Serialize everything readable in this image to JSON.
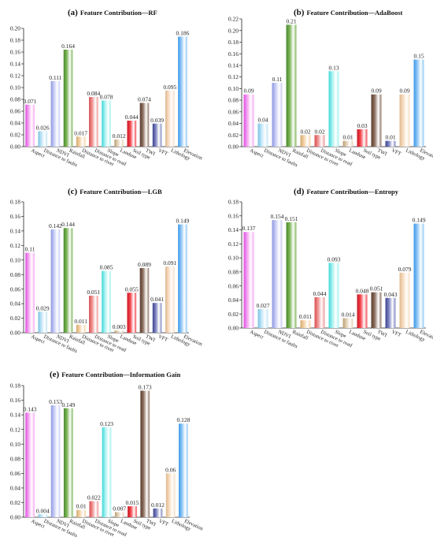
{
  "figure": {
    "panels": [
      "(a) Feature Contribution—RF",
      "(b) Feature Contribution—AdaBoost",
      "(c) Feature Contribution—LGB",
      "(d) Feature Contribution—Entropy",
      "(e) Feature Contribution—Information Gain"
    ]
  },
  "chart_data": [
    {
      "type": "bar",
      "title_letter": "(a)",
      "title": "Feature Contribution—RF",
      "categories": [
        "Aspect",
        "Distance to faults",
        "NDVI",
        "Rainfall",
        "Distance to river",
        "Distance to road",
        "Slope",
        "Landuse",
        "Soil type",
        "TWI",
        "VFT",
        "Lithology",
        "Elevation"
      ],
      "values": [
        0.071,
        0.026,
        0.111,
        0.164,
        0.017,
        0.084,
        0.078,
        0.012,
        0.044,
        0.074,
        0.039,
        0.095,
        0.186
      ],
      "labels": [
        "0.071",
        "0.026",
        "0.111",
        "0.164",
        "0.017",
        "0.084",
        "0.078",
        "0.012",
        "0.044",
        "0.074",
        "0.039",
        "0.095",
        "0.186"
      ],
      "ylim": [
        0,
        0.2
      ],
      "yticks": [
        "0.00",
        "0.02",
        "0.04",
        "0.06",
        "0.08",
        "0.10",
        "0.12",
        "0.14",
        "0.16",
        "0.18",
        "0.20"
      ],
      "xlabel": "",
      "ylabel": ""
    },
    {
      "type": "bar",
      "title_letter": "(b)",
      "title": "Feature Contribution—AdaBoost",
      "categories": [
        "Aspect",
        "Distance to faults",
        "NDVI",
        "Rainfall",
        "Distance to river",
        "Distance to road",
        "Slope",
        "Landuse",
        "Soil type",
        "TWI",
        "VFT",
        "Lithology",
        "Elevation"
      ],
      "values": [
        0.09,
        0.04,
        0.11,
        0.21,
        0.02,
        0.02,
        0.13,
        0.01,
        0.03,
        0.09,
        0.01,
        0.09,
        0.15
      ],
      "labels": [
        "0.09",
        "0.04",
        "0.11",
        "0.21",
        "0.02",
        "0.02",
        "0.13",
        "0.01",
        "0.03",
        "0.09",
        "0.01",
        "0.09",
        "0.15"
      ],
      "ylim": [
        0,
        0.22
      ],
      "yticks": [
        "0.00",
        "0.02",
        "0.04",
        "0.06",
        "0.08",
        "0.10",
        "0.12",
        "0.14",
        "0.16",
        "0.18",
        "0.20",
        "0.22"
      ],
      "xlabel": "",
      "ylabel": ""
    },
    {
      "type": "bar",
      "title_letter": "(c)",
      "title": "Feature Contribution—LGB",
      "categories": [
        "Aspect",
        "Distance to faults",
        "NDVI",
        "Rainfall",
        "Distance to river",
        "Distance to road",
        "Slope",
        "Landuse",
        "Soil type",
        "TWI",
        "VFT",
        "Lithology",
        "Elevation"
      ],
      "values": [
        0.11,
        0.029,
        0.142,
        0.144,
        0.011,
        0.051,
        0.085,
        0.003,
        0.055,
        0.089,
        0.041,
        0.091,
        0.149
      ],
      "labels": [
        "0.11",
        "0.029",
        "0.142",
        "0.144",
        "0.011",
        "0.051",
        "0.085",
        "0.003",
        "0.055",
        "0.089",
        "0.041",
        "0.091",
        "0.149"
      ],
      "ylim": [
        0,
        0.18
      ],
      "yticks": [
        "0.00",
        "0.02",
        "0.04",
        "0.06",
        "0.08",
        "0.10",
        "0.12",
        "0.14",
        "0.16",
        "0.18"
      ],
      "xlabel": "",
      "ylabel": ""
    },
    {
      "type": "bar",
      "title_letter": "(d)",
      "title": "Feature Contribution—Entropy",
      "categories": [
        "Aspect",
        "Distance to faults",
        "NDVI",
        "Rainfall",
        "Distance to river",
        "Distance to road",
        "Slope",
        "Landuse",
        "Soil type",
        "TWI",
        "VFT",
        "Lithology",
        "Elevation"
      ],
      "values": [
        0.137,
        0.027,
        0.154,
        0.151,
        0.011,
        0.044,
        0.093,
        0.014,
        0.048,
        0.051,
        0.043,
        0.079,
        0.149
      ],
      "labels": [
        "0.137",
        "0.027",
        "0.154",
        "0.151",
        "0.011",
        "0.044",
        "0.093",
        "0.014",
        "0.048",
        "0.051",
        "0.043",
        "0.079",
        "0.149"
      ],
      "ylim": [
        0,
        0.18
      ],
      "yticks": [
        "0.00",
        "0.02",
        "0.04",
        "0.06",
        "0.08",
        "0.10",
        "0.12",
        "0.14",
        "0.16",
        "0.18"
      ],
      "xlabel": "",
      "ylabel": ""
    },
    {
      "type": "bar",
      "title_letter": "(e)",
      "title": "Feature Contribution—Information Gain",
      "categories": [
        "Aspect",
        "Distance to faults",
        "NDVI",
        "Rainfall",
        "Distance to river",
        "Distance to road",
        "Slope",
        "Landuse",
        "Soil type",
        "TWI",
        "VFT",
        "Lithology",
        "Elevation"
      ],
      "values": [
        0.143,
        0.004,
        0.153,
        0.149,
        0.01,
        0.022,
        0.123,
        0.007,
        0.015,
        0.173,
        0.012,
        0.06,
        0.128
      ],
      "labels": [
        "0.143",
        "0.004",
        "0.153",
        "0.149",
        "0.01",
        "0.022",
        "0.123",
        "0.007",
        "0.015",
        "0.173",
        "0.012",
        "0.06",
        "0.128"
      ],
      "ylim": [
        0,
        0.18
      ],
      "yticks": [
        "0.00",
        "0.02",
        "0.04",
        "0.06",
        "0.08",
        "0.10",
        "0.12",
        "0.14",
        "0.16",
        "0.18"
      ],
      "xlabel": "",
      "ylabel": ""
    }
  ],
  "colors": {
    "bars": [
      "#f5a8f2",
      "#bfe6f7",
      "#c8cdf5",
      "#7fb65a",
      "#f4d2a4",
      "#f09494",
      "#a6f2f2",
      "#e3d1b5",
      "#f5474f",
      "#907465",
      "#7f86c2",
      "#f7dcc0",
      "#8fc7f5"
    ],
    "bars_dark": [
      "#e04ee0",
      "#7ec1e0",
      "#8f98e0",
      "#4a8a2e",
      "#d4a870",
      "#d85050",
      "#40d6d6",
      "#b89d74",
      "#c8151f",
      "#5a3a2c",
      "#3a4390",
      "#e0b88f",
      "#3b98e8"
    ],
    "axis": "#222222"
  }
}
